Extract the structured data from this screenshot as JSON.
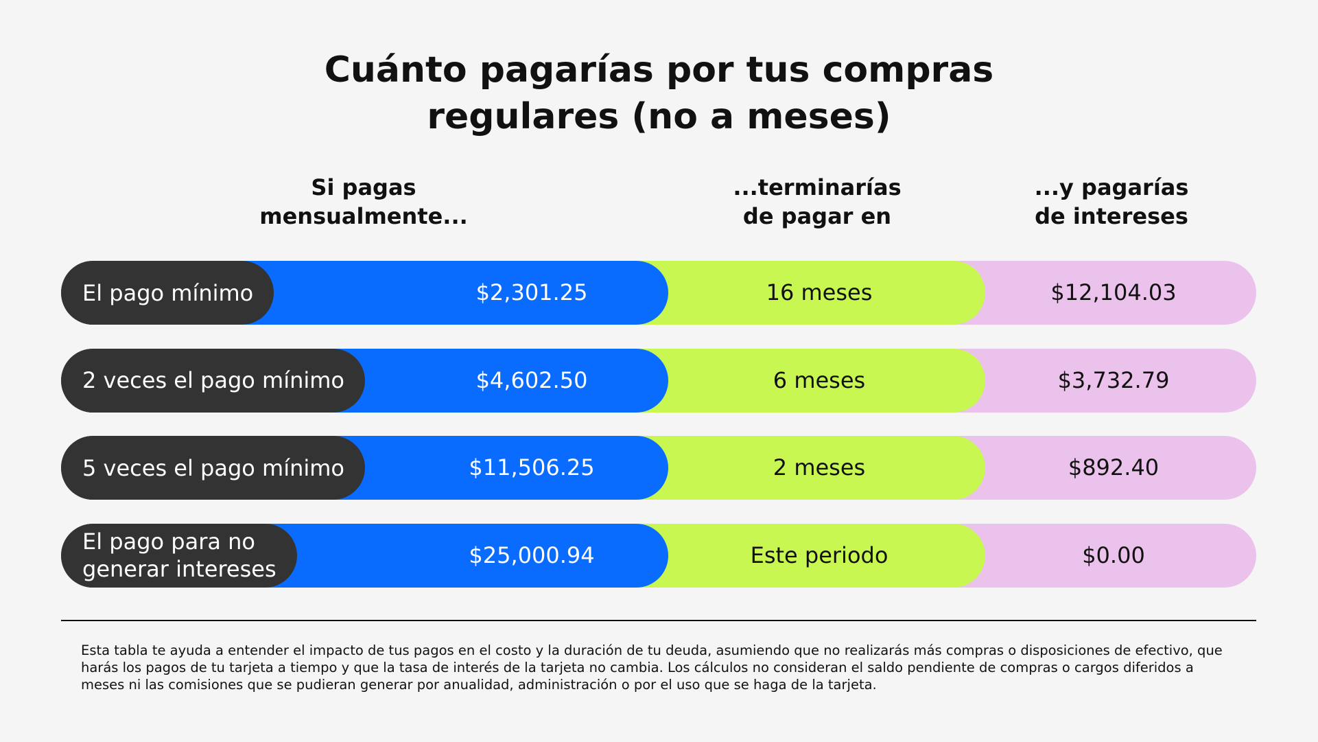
{
  "header": {
    "title_lines": [
      "Cuánto pagarías por tus compras",
      "regulares (no a meses)"
    ]
  },
  "table": {
    "columns": [
      [
        "Si pagas",
        "mensualmente..."
      ],
      [
        "...terminarías",
        "de pagar en"
      ],
      [
        "...y pagarías",
        "de intereses"
      ]
    ],
    "rows": [
      {
        "label_lines": [
          "El pago mínimo"
        ],
        "payment": "$2,301.25",
        "duration": "16 meses",
        "interest": "$12,104.03"
      },
      {
        "label_lines": [
          "2 veces el pago mínimo"
        ],
        "payment": "$4,602.50",
        "duration": "6 meses",
        "interest": "$3,732.79"
      },
      {
        "label_lines": [
          "5 veces el pago mínimo"
        ],
        "payment": "$11,506.25",
        "duration": "2 meses",
        "interest": "$892.40"
      },
      {
        "label_lines": [
          "El pago para no",
          "generar intereses"
        ],
        "payment": "$25,000.94",
        "duration": "Este periodo",
        "interest": "$0.00"
      }
    ]
  },
  "footnote": "Esta tabla te ayuda a entender el impacto de tus pagos en el costo y la duración de tu deuda, asumiendo que no realizarás más compras o disposiciones de efectivo, que harás los pagos de tu tarjeta a tiempo y que la tasa de interés de la tarjeta no cambia. Los cálculos no consideran el saldo pendiente de compras o cargos diferidos a meses ni las comisiones que se pudieran generar por anualidad, administración o por el uso que se haga de la tarjeta."
}
